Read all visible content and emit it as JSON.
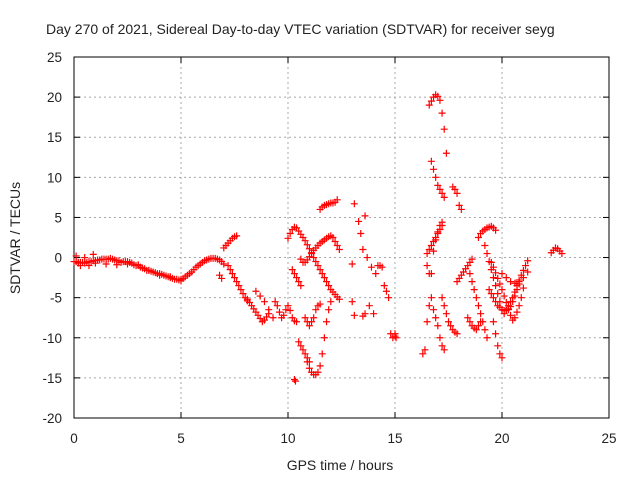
{
  "chart_data": {
    "type": "scatter",
    "title": "Day 270 of 2021, Sidereal Day-to-day VTEC variation (SDTVAR) for receiver seyg",
    "xlabel": "GPS time / hours",
    "ylabel": "SDTVAR / TECUs",
    "xlim": [
      0,
      25
    ],
    "ylim": [
      -20,
      25
    ],
    "x_ticks": [
      0,
      5,
      10,
      15,
      20,
      25
    ],
    "y_ticks": [
      -20,
      -15,
      -10,
      -5,
      0,
      5,
      10,
      15,
      20,
      25
    ],
    "grid": true,
    "marker": "+",
    "color": "#ff0000",
    "series": [
      {
        "name": "SDTVAR",
        "x": [
          0.0,
          0.1,
          0.2,
          0.3,
          0.4,
          0.5,
          0.6,
          0.7,
          0.8,
          0.9,
          1.0,
          1.1,
          1.2,
          1.3,
          1.4,
          1.5,
          1.6,
          1.7,
          1.8,
          1.9,
          2.0,
          2.1,
          2.2,
          2.3,
          2.4,
          2.5,
          2.6,
          2.7,
          2.8,
          2.9,
          3.0,
          3.1,
          3.2,
          3.3,
          3.4,
          3.5,
          3.6,
          3.7,
          3.8,
          3.9,
          4.0,
          4.1,
          4.2,
          4.3,
          4.4,
          4.5,
          4.6,
          4.7,
          4.8,
          4.9,
          5.0,
          5.1,
          5.2,
          5.3,
          5.4,
          5.5,
          5.6,
          5.7,
          5.8,
          5.9,
          6.0,
          6.1,
          6.2,
          6.3,
          6.4,
          6.5,
          6.6,
          6.7,
          6.8,
          6.9,
          7.0,
          0.1,
          0.2,
          0.3,
          0.5,
          0.7,
          0.9,
          1.0,
          1.5,
          2.0,
          2.5,
          3.0,
          3.5,
          4.0,
          4.5,
          5.0,
          7.0,
          7.1,
          7.2,
          7.3,
          7.4,
          7.5,
          7.6,
          7.2,
          7.3,
          7.4,
          7.5,
          7.6,
          7.7,
          7.8,
          7.9,
          8.0,
          8.1,
          6.8,
          6.9,
          8.1,
          8.2,
          8.3,
          8.4,
          8.5,
          8.6,
          8.7,
          8.8,
          8.9,
          9.0,
          9.1,
          8.5,
          8.7,
          8.9,
          9.1,
          9.3,
          9.4,
          9.5,
          9.6,
          9.7,
          9.8,
          9.9,
          10.0,
          10.1,
          10.2,
          10.3,
          10.4,
          10.0,
          10.1,
          10.2,
          10.3,
          10.4,
          10.5,
          10.6,
          10.7,
          10.8,
          10.9,
          11.0,
          11.1,
          11.2,
          11.3,
          11.4,
          11.5,
          11.6,
          11.7,
          11.8,
          11.9,
          12.0,
          12.1,
          12.2,
          12.3,
          12.4,
          10.3,
          10.35,
          10.5,
          10.6,
          10.7,
          10.8,
          10.9,
          11.0,
          10.6,
          10.7,
          10.8,
          10.9,
          11.0,
          11.1,
          11.2,
          11.3,
          11.4,
          11.5,
          11.6,
          11.7,
          11.8,
          11.9,
          12.0,
          12.1,
          12.2,
          12.3,
          12.4,
          10.9,
          11.0,
          11.1,
          11.2,
          11.3,
          11.4,
          11.5,
          11.6,
          11.7,
          11.8,
          11.9,
          12.0,
          10.2,
          10.3,
          10.4,
          10.5,
          10.6,
          10.8,
          10.9,
          11.0,
          11.1,
          11.2,
          11.3,
          11.4,
          11.5,
          11.5,
          11.6,
          11.7,
          11.8,
          11.9,
          12.0,
          12.1,
          12.2,
          12.3,
          13.0,
          13.1,
          13.5,
          13.6,
          13.0,
          13.3,
          13.6,
          13.1,
          13.8,
          14.0,
          14.2,
          14.4,
          13.4,
          13.5,
          13.7,
          13.9,
          14.1,
          14.3,
          14.5,
          14.6,
          14.7,
          14.8,
          14.9,
          15.0,
          15.0,
          15.05,
          16.3,
          16.4,
          16.5,
          16.6,
          16.7,
          16.8,
          16.9,
          17.0,
          17.1,
          17.2,
          16.5,
          16.6,
          16.7,
          16.8,
          16.9,
          17.0,
          17.1,
          17.2,
          17.3,
          16.6,
          16.7,
          16.8,
          16.9,
          17.0,
          17.1,
          17.2,
          17.3,
          17.4,
          16.7,
          16.8,
          16.9,
          17.0,
          17.1,
          17.2,
          17.3,
          16.5,
          16.6,
          16.7,
          16.8,
          16.9,
          17.0,
          17.1,
          17.2,
          17.2,
          17.3,
          17.4,
          17.5,
          17.6,
          17.7,
          17.8,
          17.9,
          17.7,
          17.8,
          17.9,
          18.0,
          18.1,
          17.9,
          18.0,
          18.1,
          18.2,
          18.3,
          18.4,
          18.5,
          18.6,
          18.5,
          18.6,
          18.7,
          18.8,
          18.9,
          19.0,
          19.1,
          19.2,
          19.3,
          18.9,
          19.0,
          19.1,
          19.2,
          19.3,
          19.4,
          19.5,
          19.6,
          19.7,
          18.4,
          18.5,
          18.6,
          18.7,
          18.8,
          18.9,
          19.0,
          19.2,
          19.3,
          19.4,
          19.5,
          19.6,
          19.7,
          19.8,
          19.9,
          20.0,
          20.1,
          20.2,
          20.3,
          20.4,
          20.5,
          20.6,
          20.7,
          20.8,
          20.9,
          21.0,
          21.1,
          21.2,
          19.4,
          19.5,
          19.6,
          19.7,
          19.8,
          19.9,
          20.0,
          20.1,
          20.2,
          20.3,
          20.4,
          20.5,
          20.6,
          20.7,
          20.8,
          19.5,
          19.6,
          19.7,
          19.8,
          19.9,
          20.0,
          20.1,
          20.2,
          20.3,
          20.4,
          20.5,
          20.6,
          20.7,
          20.8,
          20.9,
          21.0,
          19.6,
          19.7,
          19.8,
          19.9,
          20.0,
          20.0,
          20.2,
          20.4,
          20.6,
          20.8,
          21.0,
          21.2,
          22.3,
          22.4,
          22.5,
          22.6,
          22.7,
          22.8
        ],
        "y": [
          -0.5,
          -0.5,
          -0.7,
          -0.6,
          -0.6,
          -0.7,
          -0.6,
          -0.5,
          -0.5,
          -0.4,
          -0.4,
          -0.3,
          -0.3,
          -0.2,
          -0.2,
          -0.2,
          -0.2,
          -0.1,
          -0.2,
          -0.3,
          -0.4,
          -0.4,
          -0.6,
          -0.5,
          -0.5,
          -0.5,
          -0.6,
          -0.7,
          -0.9,
          -1.0,
          -1.0,
          -1.2,
          -1.3,
          -1.4,
          -1.6,
          -1.6,
          -1.7,
          -1.8,
          -1.9,
          -2.0,
          -2.0,
          -2.1,
          -2.2,
          -2.3,
          -2.4,
          -2.5,
          -2.6,
          -2.7,
          -2.7,
          -2.8,
          -2.7,
          -2.6,
          -2.4,
          -2.2,
          -2.0,
          -1.8,
          -1.5,
          -1.2,
          -1.0,
          -0.8,
          -0.6,
          -0.4,
          -0.3,
          -0.2,
          -0.1,
          -0.1,
          -0.1,
          -0.2,
          -0.3,
          -0.5,
          -0.8,
          0.2,
          -0.6,
          -1.0,
          0.0,
          -1.0,
          0.4,
          -0.7,
          -0.8,
          -0.9,
          -0.8,
          -0.9,
          -1.6,
          -2.2,
          -2.4,
          -2.9,
          1.2,
          1.5,
          1.8,
          2.1,
          2.4,
          2.6,
          2.7,
          -1.0,
          -1.5,
          -2.0,
          -2.5,
          -3.0,
          -3.5,
          -4.0,
          -4.5,
          -5.0,
          -5.4,
          -2.2,
          -2.6,
          -5.2,
          -5.6,
          -6.0,
          -6.4,
          -6.8,
          -7.2,
          -7.6,
          -8.0,
          -7.8,
          -7.4,
          -7.0,
          -4.2,
          -4.8,
          -5.5,
          -6.5,
          -7.5,
          -5.5,
          -6.0,
          -6.8,
          -7.5,
          -7.2,
          -6.5,
          -6.0,
          -6.6,
          -7.5,
          -7.9,
          -8.0,
          2.4,
          3.0,
          3.5,
          3.8,
          3.7,
          3.3,
          2.9,
          2.5,
          2.1,
          1.6,
          1.1,
          0.6,
          0.0,
          -0.5,
          -1.0,
          -1.5,
          -2.0,
          -2.5,
          -3.0,
          -3.5,
          -4.0,
          -4.3,
          -4.6,
          -4.9,
          -5.2,
          -15.2,
          -15.4,
          -10.5,
          -11.0,
          -11.5,
          -12.0,
          -12.5,
          -13.0,
          -0.2,
          -0.6,
          -0.6,
          -0.3,
          0.1,
          0.5,
          0.9,
          1.2,
          1.5,
          1.8,
          2.0,
          2.2,
          2.4,
          2.6,
          2.7,
          2.5,
          2.0,
          1.5,
          1.0,
          -13.0,
          -13.8,
          -14.3,
          -14.6,
          -14.6,
          -14.3,
          -13.5,
          -12.0,
          -10.0,
          -8.0,
          -6.5,
          -5.5,
          -1.5,
          -2.0,
          -2.5,
          -3.0,
          -3.5,
          -7.5,
          -8.0,
          -8.5,
          -8.0,
          -7.5,
          -6.5,
          -6.0,
          -5.8,
          6.0,
          6.3,
          6.5,
          6.6,
          6.7,
          6.8,
          6.8,
          6.9,
          7.2,
          -5.5,
          -7.2,
          -7.3,
          -7.0,
          -0.8,
          4.5,
          5.2,
          6.7,
          -6.0,
          -7.0,
          -1.0,
          -1.2,
          3.0,
          1.0,
          0.0,
          -1.2,
          -2.0,
          -1.0,
          -3.5,
          -4.2,
          -5.0,
          -9.5,
          -10.0,
          -9.8,
          -9.5,
          -10.0,
          -12.0,
          -11.5,
          -8.0,
          -6.0,
          -2.0,
          0.8,
          2.2,
          3.2,
          4.0,
          4.4,
          -1.0,
          -2.0,
          -5.0,
          -6.5,
          -7.5,
          -8.5,
          -10.0,
          -11.0,
          -11.5,
          19.0,
          19.5,
          20.0,
          20.3,
          20.1,
          19.6,
          18.0,
          16.0,
          13.0,
          12.0,
          11.0,
          10.0,
          9.0,
          8.5,
          8.0,
          7.5,
          0.5,
          1.0,
          1.5,
          2.0,
          2.5,
          3.0,
          3.5,
          4.0,
          -5.0,
          -6.0,
          -7.0,
          -8.0,
          -8.5,
          -9.0,
          -9.3,
          -9.5,
          8.8,
          8.5,
          8.0,
          6.5,
          6.0,
          -3.0,
          -2.6,
          -2.2,
          -1.8,
          -1.4,
          -1.0,
          -0.6,
          -0.2,
          -2.0,
          -3.0,
          -4.0,
          -5.0,
          -6.0,
          -7.0,
          -8.0,
          -9.0,
          -10.0,
          2.5,
          3.0,
          3.3,
          3.5,
          3.7,
          3.8,
          3.9,
          3.7,
          3.4,
          -7.5,
          -8.0,
          -8.5,
          -8.8,
          -9.0,
          -8.5,
          -8.0,
          1.5,
          0.5,
          -0.5,
          -1.5,
          -2.5,
          -3.5,
          -4.5,
          -5.5,
          -6.5,
          -7.0,
          -6.5,
          -6.0,
          -5.5,
          -5.0,
          -4.3,
          -3.5,
          -2.8,
          -2.2,
          -1.6,
          -1.0,
          -0.4,
          -4.0,
          -4.5,
          -5.0,
          -5.5,
          -6.0,
          -6.2,
          -6.5,
          -6.6,
          -6.6,
          -6.4,
          -6.1,
          -5.5,
          -4.8,
          -4.0,
          -3.3,
          -0.6,
          -1.2,
          -1.9,
          -2.6,
          -3.3,
          -4.0,
          -4.8,
          -5.6,
          -6.5,
          -7.2,
          -7.8,
          -7.5,
          -6.8,
          -6.0,
          -5.0,
          -3.8,
          -8.0,
          -9.5,
          -11.0,
          -12.0,
          -12.5,
          -2.0,
          -2.5,
          -3.0,
          -3.2,
          -3.0,
          -2.5,
          -1.8,
          0.6,
          0.9,
          1.2,
          1.1,
          0.8,
          0.5
        ]
      }
    ]
  }
}
